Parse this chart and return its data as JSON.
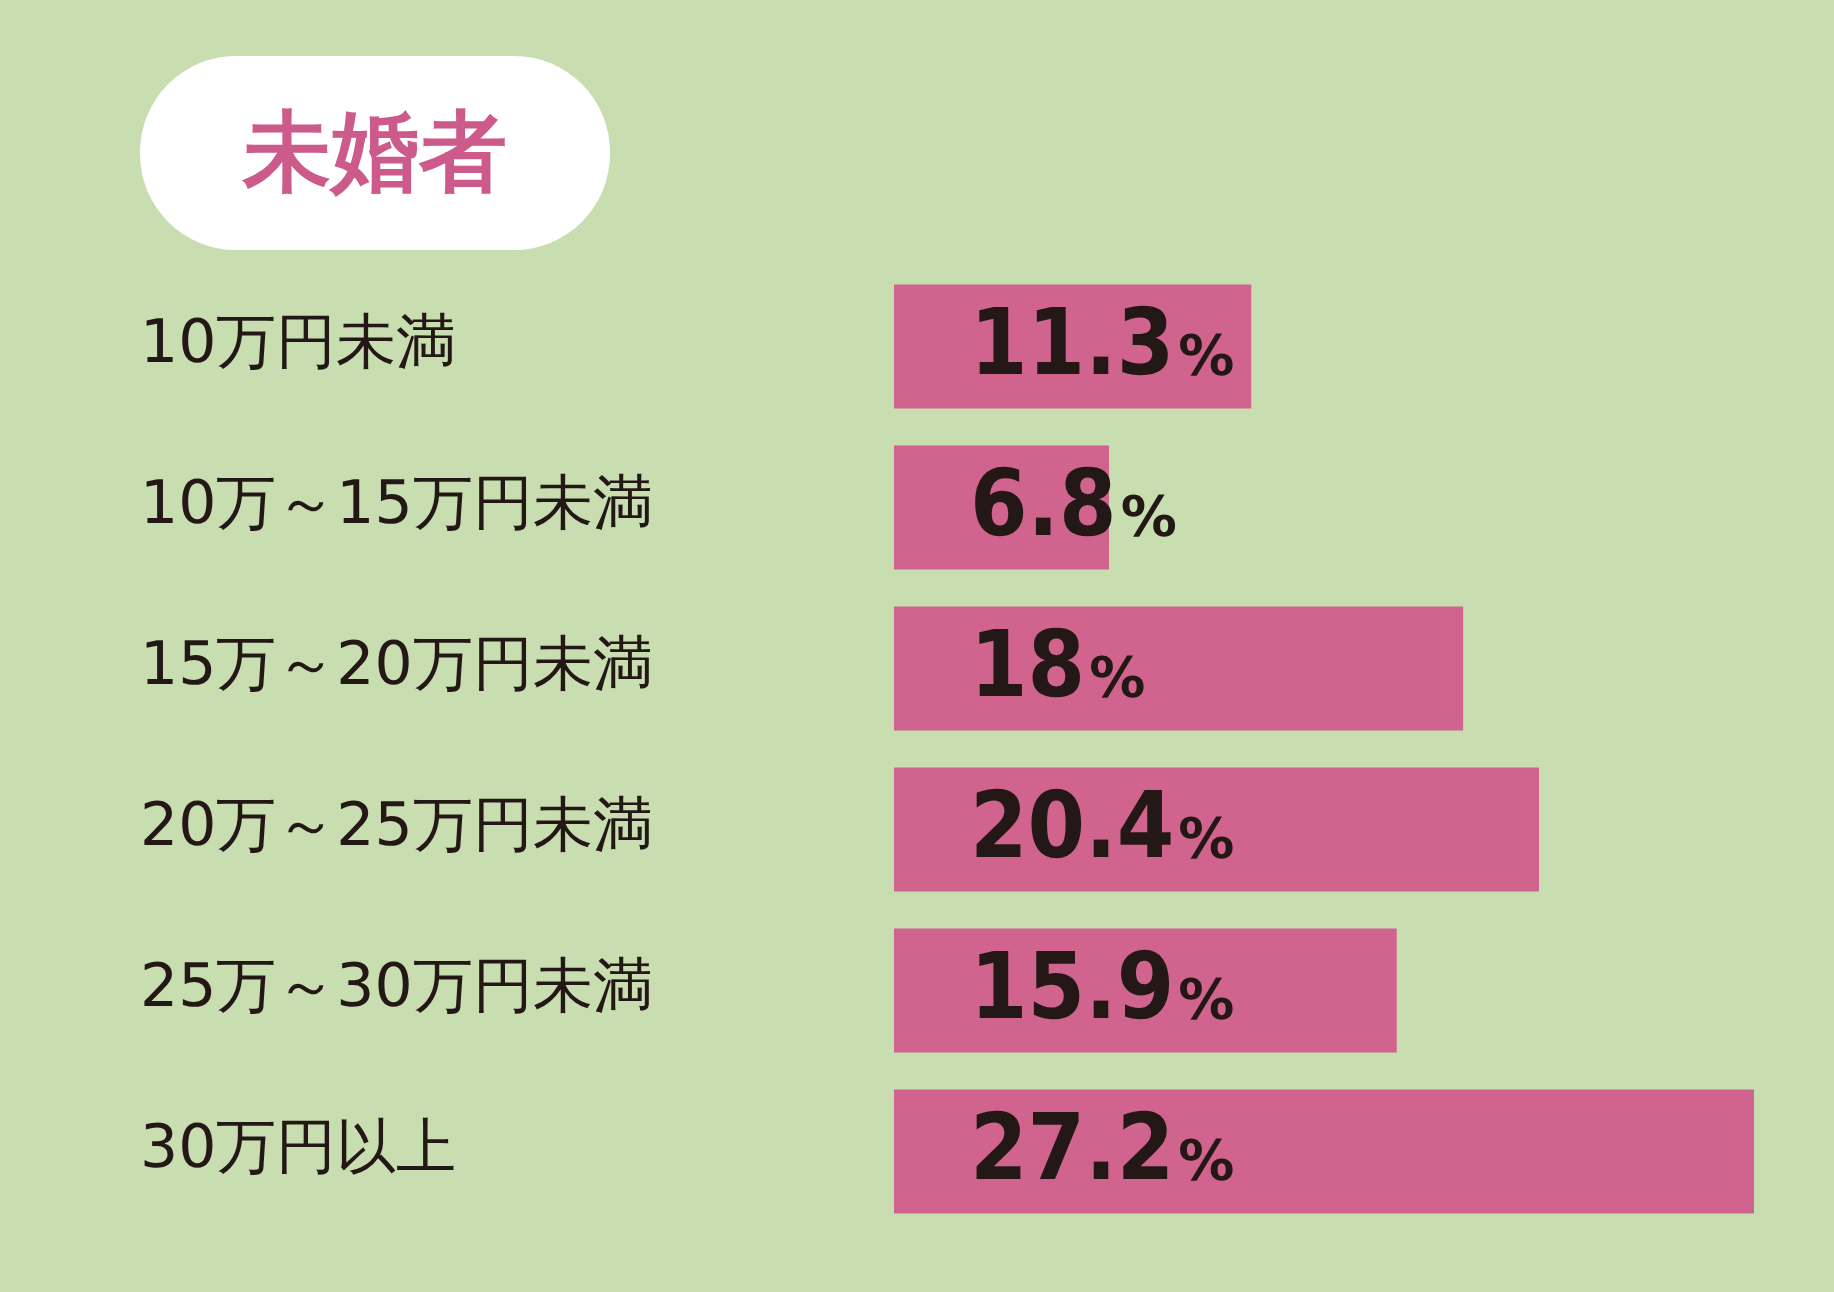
{
  "chart_data": {
    "type": "bar",
    "orientation": "horizontal",
    "title": "未婚者",
    "categories": [
      "10万円未満",
      "10万～15万円未満",
      "15万～20万円未満",
      "20万～25万円未満",
      "25万～30万円未満",
      "30万円以上"
    ],
    "values": [
      11.3,
      6.8,
      18,
      20.4,
      15.9,
      27.2
    ],
    "value_labels": [
      "11.3%",
      "6.8%",
      "18%",
      "20.4%",
      "15.9%",
      "27.2%"
    ],
    "color": "#d0648e"
  }
}
